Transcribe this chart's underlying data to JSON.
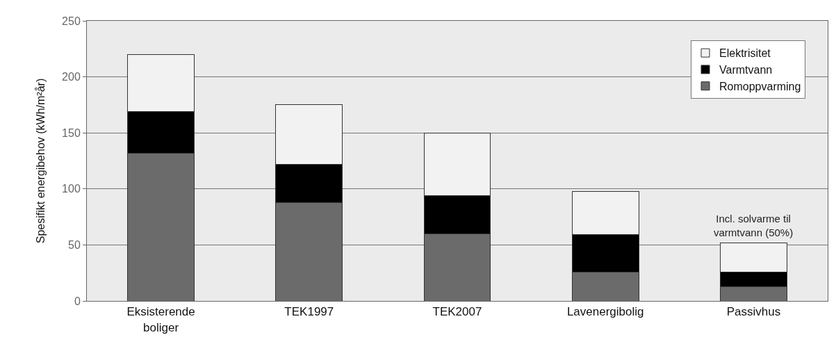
{
  "chart_data": {
    "type": "bar",
    "stacked": true,
    "ylabel": "Spesifikt energibehov (kWh/m²år)",
    "categories": [
      "Eksisterende boliger",
      "TEK1997",
      "TEK2007",
      "Lavenergibolig",
      "Passivhus"
    ],
    "series": [
      {
        "name": "Romoppvarming",
        "color": "#6b6b6b",
        "values": [
          132,
          88,
          60,
          26,
          13
        ]
      },
      {
        "name": "Varmtvann",
        "color": "#000000",
        "values": [
          37,
          34,
          34,
          33,
          13
        ]
      },
      {
        "name": "Elektrisitet",
        "color": "#f2f2f2",
        "values": [
          51,
          53,
          56,
          39,
          26
        ]
      }
    ],
    "ylim": [
      0,
      250
    ],
    "yticks": [
      0,
      50,
      100,
      150,
      200,
      250
    ],
    "grid": "y",
    "legend": "top right",
    "annotations": [
      {
        "text": "Incl. solvarme til varmtvann (50%)",
        "x": "Passivhus",
        "y": 52
      }
    ]
  }
}
